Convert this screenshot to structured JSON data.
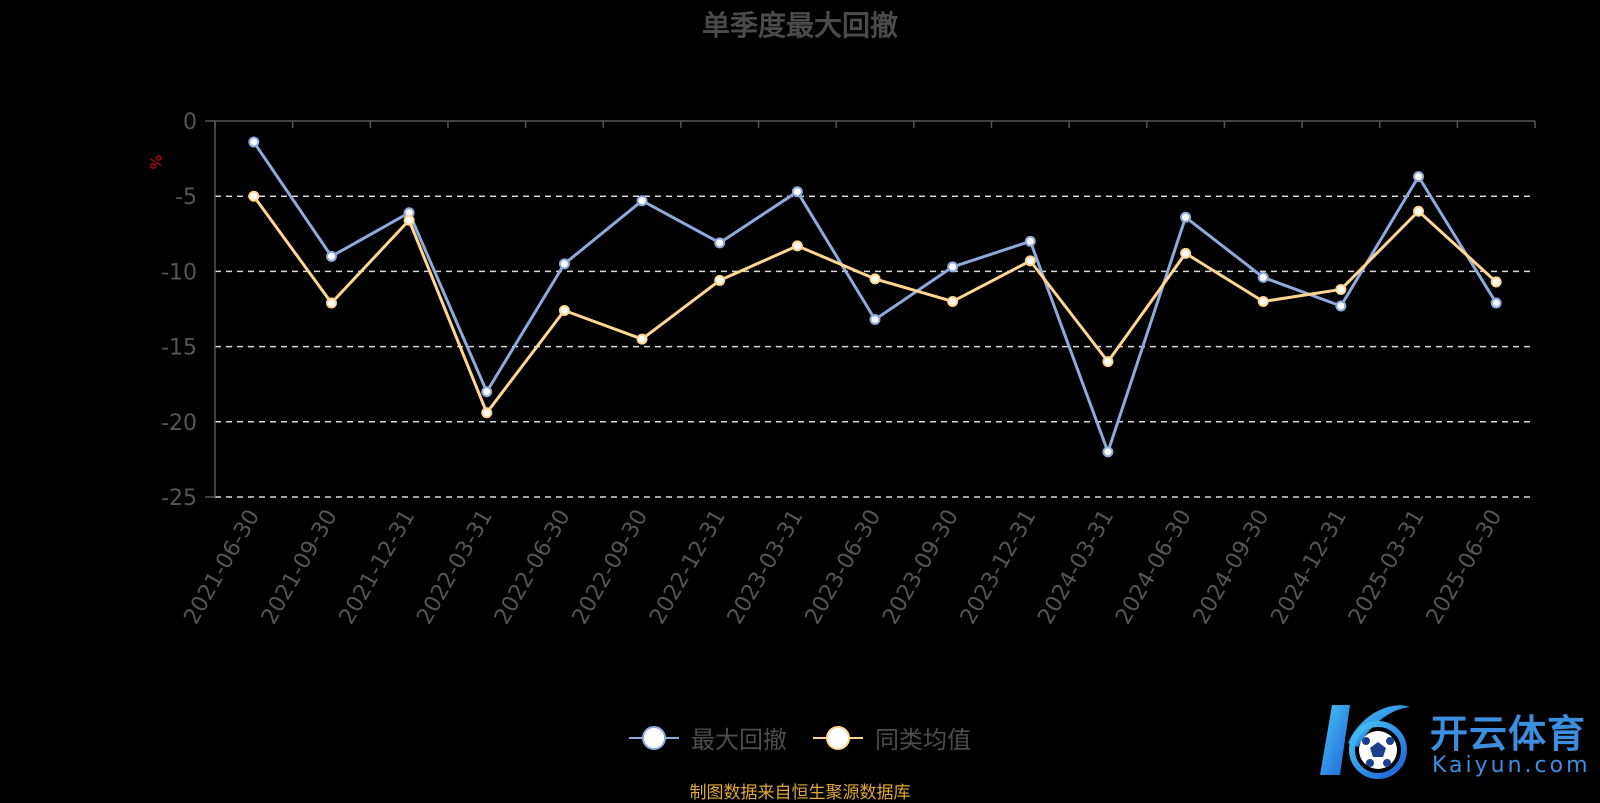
{
  "chart_data": {
    "type": "line",
    "title": "单季度最大回撤",
    "ylabel": "%",
    "ylim": [
      -25,
      0
    ],
    "yticks": [
      0,
      -5,
      -10,
      -15,
      -20,
      -25
    ],
    "categories": [
      "2021-06-30",
      "2021-09-30",
      "2021-12-31",
      "2022-03-31",
      "2022-06-30",
      "2022-09-30",
      "2022-12-31",
      "2023-03-31",
      "2023-06-30",
      "2023-09-30",
      "2023-12-31",
      "2024-03-31",
      "2024-06-30",
      "2024-09-30",
      "2024-12-31",
      "2025-03-31",
      "2025-06-30"
    ],
    "series": [
      {
        "name": "最大回撤",
        "color": "#8eaadb",
        "values": [
          -1.4,
          -9.0,
          -6.1,
          -18.0,
          -9.5,
          -5.3,
          -8.1,
          -4.7,
          -13.2,
          -9.7,
          -8.0,
          -22.0,
          -6.4,
          -10.4,
          -12.3,
          -3.7,
          -12.1
        ]
      },
      {
        "name": "同类均值",
        "color": "#ffd591",
        "values": [
          -5.0,
          -12.1,
          -6.6,
          -19.4,
          -12.6,
          -14.5,
          -10.6,
          -8.3,
          -10.5,
          -12.0,
          -9.3,
          -16.0,
          -8.8,
          -12.0,
          -11.2,
          -6.0,
          -10.7
        ]
      }
    ],
    "grid": "dashed-horizontal",
    "legend_position": "bottom-center"
  },
  "source_note": "制图数据来自恒生聚源数据库",
  "watermark": {
    "cn": "开云体育",
    "en": "Kaiyun.com"
  }
}
